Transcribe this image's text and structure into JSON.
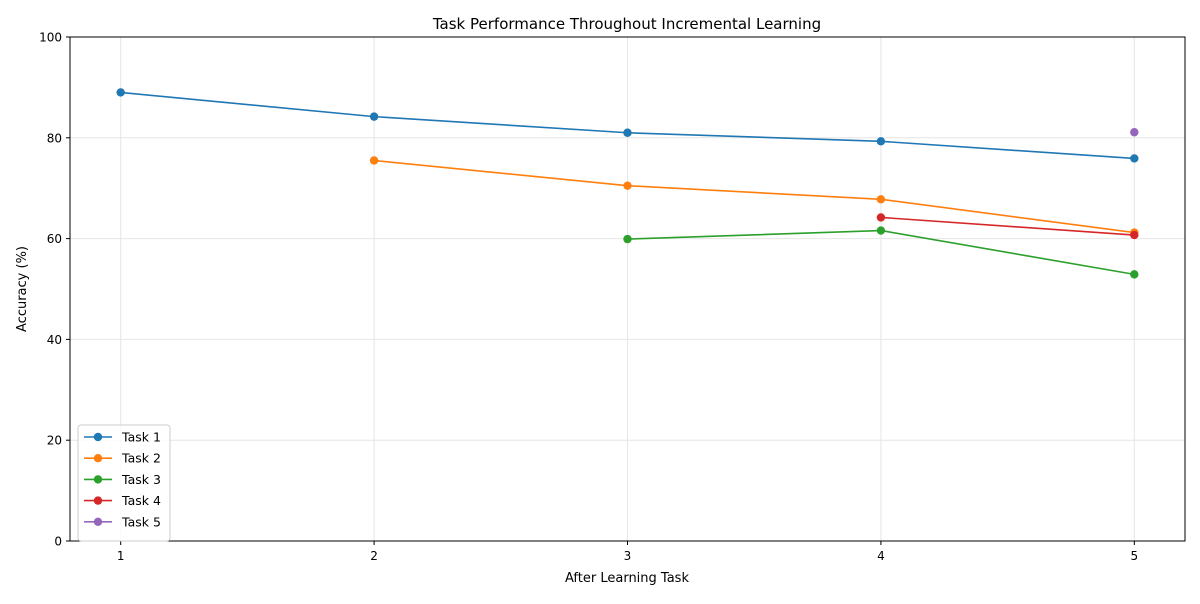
{
  "chart_data": {
    "type": "line",
    "title": "Task Performance Throughout Incremental Learning",
    "xlabel": "After Learning Task",
    "ylabel": "Accuracy (%)",
    "x": [
      1,
      2,
      3,
      4,
      5
    ],
    "xlim": [
      0.8,
      5.2
    ],
    "ylim": [
      0,
      100
    ],
    "yticks": [
      0,
      20,
      40,
      60,
      80,
      100
    ],
    "grid": true,
    "legend_position": "lower-left",
    "series": [
      {
        "name": "Task 1",
        "color": "#1f77b4",
        "x": [
          1,
          2,
          3,
          4,
          5
        ],
        "values": [
          89.0,
          84.2,
          81.0,
          79.3,
          75.9
        ]
      },
      {
        "name": "Task 2",
        "color": "#ff7f0e",
        "x": [
          2,
          3,
          4,
          5
        ],
        "values": [
          75.5,
          70.5,
          67.8,
          61.2
        ]
      },
      {
        "name": "Task 3",
        "color": "#2ca02c",
        "x": [
          3,
          4,
          5
        ],
        "values": [
          59.9,
          61.6,
          52.9
        ]
      },
      {
        "name": "Task 4",
        "color": "#d62728",
        "x": [
          4,
          5
        ],
        "values": [
          64.2,
          60.7
        ]
      },
      {
        "name": "Task 5",
        "color": "#9467bd",
        "x": [
          5
        ],
        "values": [
          81.1
        ]
      }
    ]
  }
}
